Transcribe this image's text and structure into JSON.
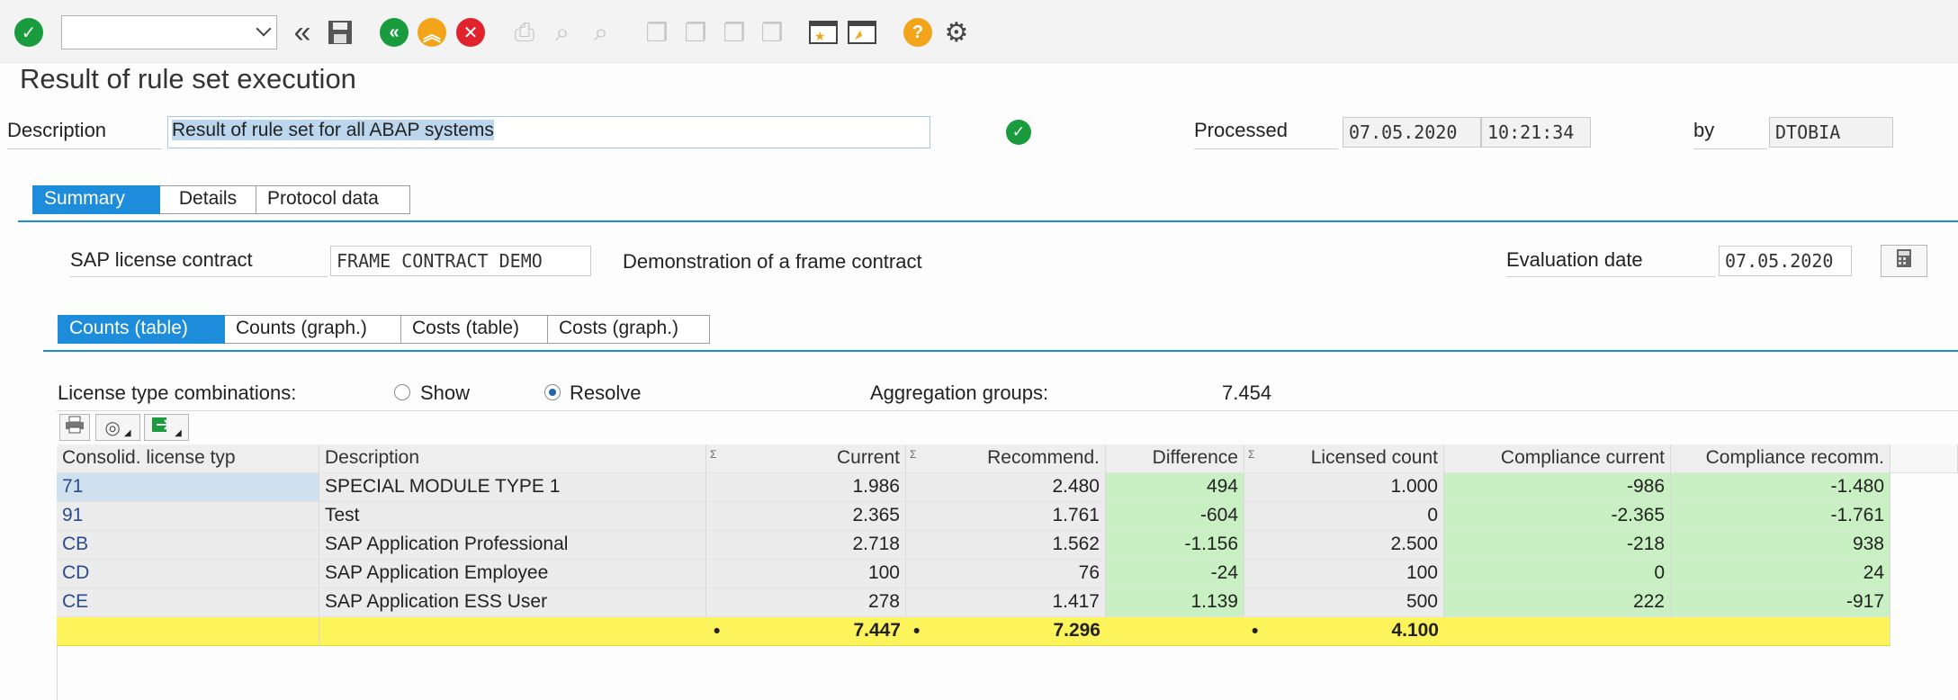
{
  "window": {
    "title": "Result of rule set execution"
  },
  "toolbar": {
    "command_field_value": "",
    "icons": [
      "enter-check-icon",
      "save-icon",
      "back-icon",
      "exit-icon",
      "cancel-icon",
      "print-icon",
      "find-icon",
      "find-next-icon",
      "first-page-icon",
      "prev-page-icon",
      "next-page-icon",
      "last-page-icon",
      "new-session-icon",
      "shortcut-icon",
      "help-icon",
      "settings-icon"
    ]
  },
  "header": {
    "description_label": "Description",
    "description_value": "Result of rule set for all ABAP systems",
    "processed_label": "Processed",
    "processed_date": "07.05.2020",
    "processed_time": "10:21:34",
    "by_label": "by",
    "by_value": "DTOBIA"
  },
  "main_tabs": [
    {
      "label": "Summary",
      "active": true
    },
    {
      "label": "Details",
      "active": false
    },
    {
      "label": "Protocol data",
      "active": false
    }
  ],
  "contract": {
    "label": "SAP license contract",
    "value": "FRAME CONTRACT DEMO",
    "description": "Demonstration of a frame contract",
    "evaluation_label": "Evaluation date",
    "evaluation_value": "07.05.2020"
  },
  "sub_tabs": [
    {
      "label": "Counts (table)",
      "active": true
    },
    {
      "label": "Counts (graph.)",
      "active": false
    },
    {
      "label": "Costs (table)",
      "active": false
    },
    {
      "label": "Costs (graph.)",
      "active": false
    }
  ],
  "options": {
    "combinations_label": "License type combinations:",
    "show_label": "Show",
    "resolve_label": "Resolve",
    "selected": "Resolve",
    "aggregation_label": "Aggregation groups:",
    "aggregation_value": "7.454"
  },
  "table": {
    "columns": [
      "Consolid. license typ",
      "Description",
      "Current",
      "Recommend.",
      "Difference",
      "Licensed count",
      "Compliance current",
      "Compliance recomm."
    ],
    "sum_marker": "Σ",
    "rows": [
      [
        "71",
        "SPECIAL MODULE TYPE 1",
        "1.986",
        "2.480",
        "494",
        "1.000",
        "-986",
        "-1.480"
      ],
      [
        "91",
        "Test",
        "2.365",
        "1.761",
        "-604",
        "0",
        "-2.365",
        "-1.761"
      ],
      [
        "CB",
        "SAP Application Professional",
        "2.718",
        "1.562",
        "-1.156",
        "2.500",
        "-218",
        "938"
      ],
      [
        "CD",
        "SAP Application Employee",
        "100",
        "76",
        "-24",
        "100",
        "0",
        "24"
      ],
      [
        "CE",
        "SAP Application ESS User",
        "278",
        "1.417",
        "1.139",
        "500",
        "222",
        "-917"
      ]
    ],
    "totals": {
      "dot": "•",
      "current": "7.447",
      "recommend": "7.296",
      "licensed": "4.100"
    }
  }
}
